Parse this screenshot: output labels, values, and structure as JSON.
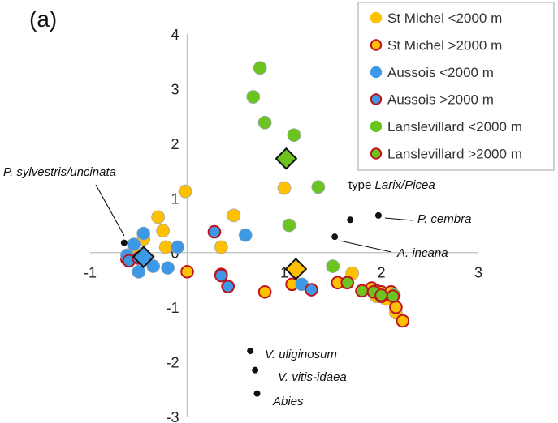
{
  "chart_data": {
    "type": "scatter",
    "panel_label": "(a)",
    "xlim": [
      -1,
      3
    ],
    "ylim": [
      -3,
      4
    ],
    "x_ticks": [
      "-1",
      "0",
      "1",
      "2",
      "3"
    ],
    "y_ticks": [
      "-3",
      "-2",
      "-1",
      "0",
      "1",
      "2",
      "3",
      "4"
    ],
    "grid": false,
    "legend_position": "top-right",
    "colors": {
      "orange": "#FFC000",
      "blue": "#3D99E6",
      "green": "#6CC51F",
      "red_edge": "#C0121F",
      "gray_edge": "#9AA8B4",
      "black": "#111111"
    },
    "series": [
      {
        "name": "St Michel <2000 m",
        "fill": "#FFC000",
        "edge": "#FFC000",
        "points": [
          [
            -0.02,
            1.12
          ],
          [
            -0.3,
            0.65
          ],
          [
            -0.25,
            0.4
          ],
          [
            -0.22,
            0.1
          ],
          [
            -0.45,
            0.25
          ],
          [
            -0.55,
            0.05
          ],
          [
            0.48,
            0.68
          ],
          [
            0.35,
            0.1
          ],
          [
            1.0,
            1.18
          ],
          [
            1.7,
            -0.38
          ],
          [
            1.95,
            -0.8
          ],
          [
            2.05,
            -0.85
          ],
          [
            2.15,
            -1.1
          ]
        ]
      },
      {
        "name": "St Michel >2000 m",
        "fill": "#FFC000",
        "edge": "#C0121F",
        "points": [
          [
            -0.62,
            -0.12
          ],
          [
            0.0,
            -0.35
          ],
          [
            0.35,
            -0.4
          ],
          [
            0.42,
            -0.62
          ],
          [
            0.8,
            -0.72
          ],
          [
            1.08,
            -0.58
          ],
          [
            1.55,
            -0.55
          ],
          [
            1.9,
            -0.65
          ],
          [
            1.95,
            -0.7
          ],
          [
            2.0,
            -0.72
          ],
          [
            2.1,
            -0.72
          ],
          [
            2.15,
            -1.0
          ],
          [
            2.22,
            -1.25
          ]
        ]
      },
      {
        "name": "Aussois <2000 m",
        "fill": "#3D99E6",
        "edge": "#3D99E6",
        "points": [
          [
            -0.45,
            0.35
          ],
          [
            -0.55,
            0.15
          ],
          [
            -0.62,
            -0.05
          ],
          [
            -0.35,
            -0.25
          ],
          [
            -0.2,
            -0.28
          ],
          [
            -0.1,
            0.1
          ],
          [
            0.6,
            0.32
          ],
          [
            1.18,
            -0.58
          ],
          [
            -0.5,
            -0.35
          ]
        ]
      },
      {
        "name": "Aussois >2000 m",
        "fill": "#3D99E6",
        "edge": "#C0121F",
        "points": [
          [
            0.28,
            0.38
          ],
          [
            -0.6,
            -0.15
          ],
          [
            -0.5,
            -0.1
          ],
          [
            0.35,
            -0.42
          ],
          [
            0.42,
            -0.62
          ],
          [
            1.28,
            -0.68
          ],
          [
            2.0,
            -0.8
          ]
        ]
      },
      {
        "name": "Lanslevillard <2000 m",
        "fill": "#6CC51F",
        "edge": "#6CC51F",
        "points": [
          [
            0.75,
            3.38
          ],
          [
            0.68,
            2.85
          ],
          [
            0.8,
            2.38
          ],
          [
            1.1,
            2.15
          ],
          [
            1.35,
            1.2
          ],
          [
            1.05,
            0.5
          ],
          [
            1.5,
            -0.25
          ],
          [
            2.13,
            -0.78
          ]
        ]
      },
      {
        "name": "Lanslevillard >2000 m",
        "fill": "#6CC51F",
        "edge": "#C0121F",
        "points": [
          [
            1.65,
            -0.55
          ],
          [
            1.8,
            -0.7
          ],
          [
            1.92,
            -0.72
          ],
          [
            2.0,
            -0.78
          ],
          [
            2.12,
            -0.8
          ]
        ]
      }
    ],
    "centroids": [
      {
        "series": "Aussois <2000 m",
        "fill": "#3D99E6",
        "point": [
          -0.45,
          -0.08
        ]
      },
      {
        "series": "Lanslevillard <2000 m",
        "fill": "#6CC51F",
        "point": [
          1.02,
          1.72
        ]
      },
      {
        "series": "St Michel <2000 m",
        "fill": "#FFC000",
        "point": [
          1.12,
          -0.3
        ]
      }
    ],
    "annotations": [
      {
        "text": "P. sylvestris/uncinata",
        "point": [
          -0.65,
          0.18
        ],
        "leader": true
      },
      {
        "text": "type Larix/Picea",
        "point": [
          1.68,
          0.6
        ],
        "leader": false
      },
      {
        "text": "P. cembra",
        "point": [
          1.97,
          0.68
        ],
        "leader": true
      },
      {
        "text": "A. incana",
        "point": [
          1.52,
          0.29
        ],
        "leader": true
      },
      {
        "text": "V. uliginosum",
        "point": [
          0.65,
          -1.8
        ],
        "leader": false
      },
      {
        "text": "V. vitis-idaea",
        "point": [
          0.7,
          -2.15
        ],
        "leader": false
      },
      {
        "text": "Abies",
        "point": [
          0.72,
          -2.58
        ],
        "leader": false
      }
    ]
  }
}
